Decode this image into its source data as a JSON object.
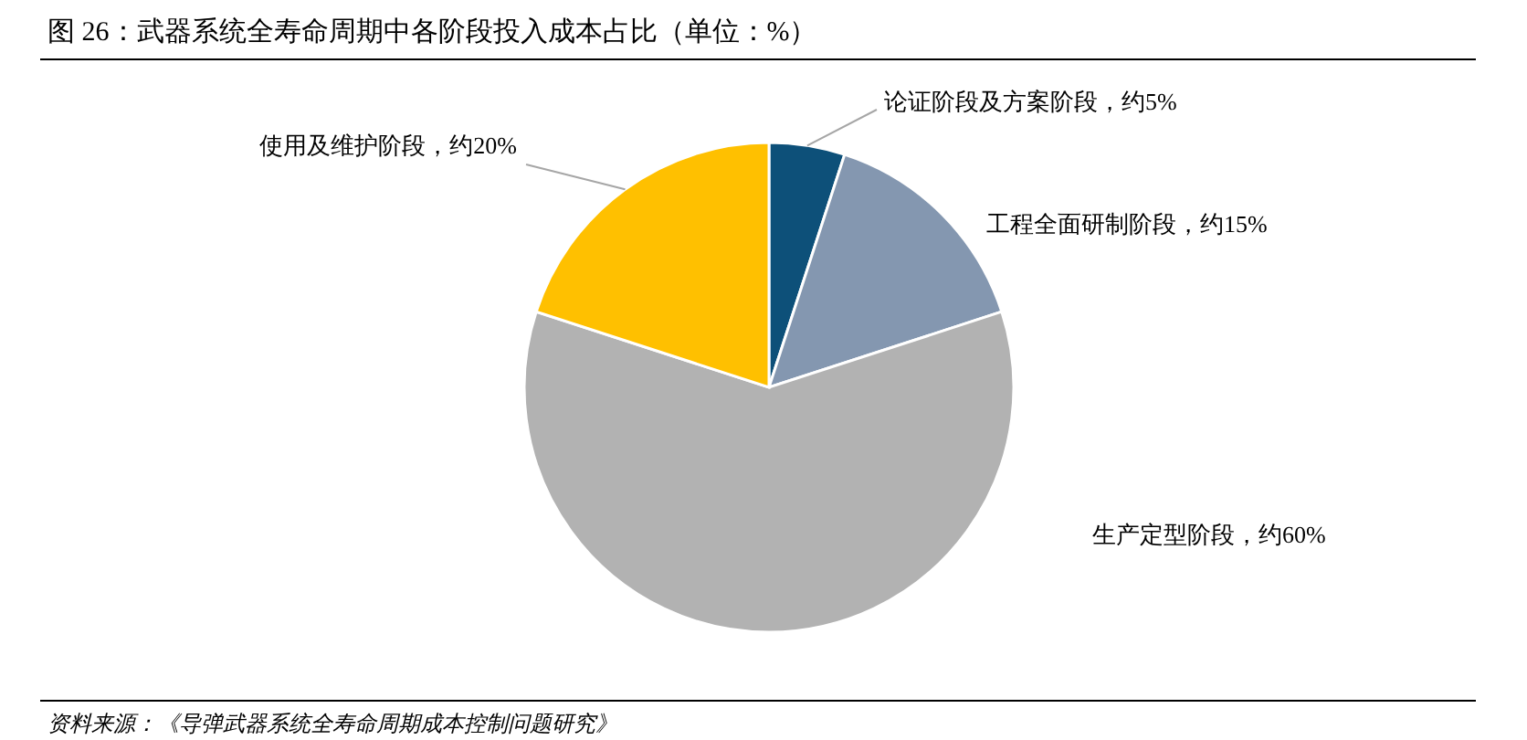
{
  "chart_data": {
    "type": "pie",
    "title": "图 26：武器系统全寿命周期中各阶段投入成本占比（单位：%）",
    "categories": [
      "论证阶段及方案阶段",
      "工程全面研制阶段",
      "生产定型阶段",
      "使用及维护阶段"
    ],
    "values": [
      5,
      15,
      60,
      20
    ],
    "colors": [
      "#0d5079",
      "#8497b0",
      "#b2b2b2",
      "#ffc000"
    ],
    "value_labels": [
      "约5%",
      "约15%",
      "约60%",
      "约20%"
    ],
    "annotations": [
      "资料来源：《导弹武器系统全寿命周期成本控制问题研究》"
    ]
  }
}
